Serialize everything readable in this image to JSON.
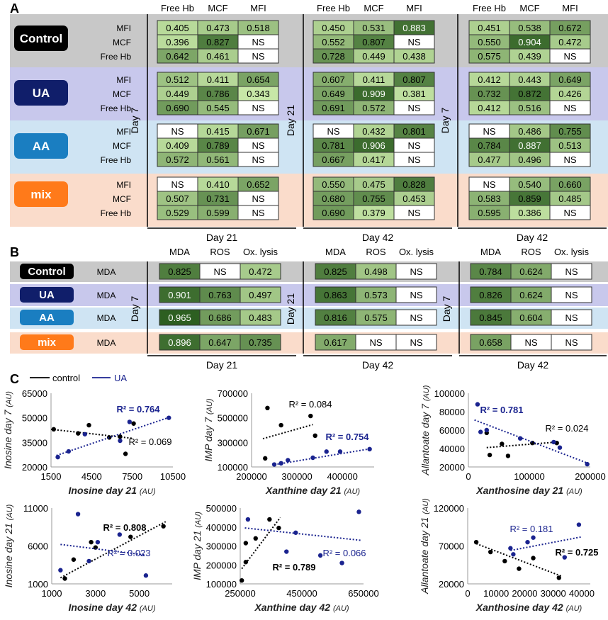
{
  "colors": {
    "control_band": "#c8c8c8",
    "ua_band": "#c8c8ec",
    "aa_band": "#cfe4f3",
    "mix_band": "#fadccb",
    "control_btn": "#000000",
    "ua_btn": "#101e6a",
    "aa_btn": "#1a7ec1",
    "mix_btn": "#ff7a1a",
    "ns_cell": "#ffffff",
    "control_series": "#000000",
    "ua_series": "#1a238f"
  },
  "panel_a": {
    "letter": "A",
    "col_headers": [
      "Free Hb",
      "MCF",
      "MFI"
    ],
    "row_labels": [
      "MFI",
      "MCF",
      "Free Hb"
    ],
    "groups": [
      "Control",
      "UA",
      "AA",
      "mix"
    ],
    "side_labels": [
      "Day 7",
      "Day 21",
      "Day 7"
    ],
    "bottom_labels": [
      "Day 21",
      "Day 42",
      "Day 42"
    ],
    "grids": [
      [
        [
          [
            "0.405",
            "0.473",
            "0.518"
          ],
          [
            "0.396",
            "0.827",
            "NS"
          ],
          [
            "0.642",
            "0.461",
            "NS"
          ]
        ],
        [
          [
            "0.512",
            "0.411",
            "0.654"
          ],
          [
            "0.449",
            "0.786",
            "0.343"
          ],
          [
            "0.690",
            "0.545",
            "NS"
          ]
        ],
        [
          [
            "NS",
            "0.415",
            "0.671"
          ],
          [
            "0.409",
            "0.789",
            "NS"
          ],
          [
            "0.572",
            "0.561",
            "NS"
          ]
        ],
        [
          [
            "NS",
            "0.410",
            "0.652"
          ],
          [
            "0.507",
            "0.731",
            "NS"
          ],
          [
            "0.529",
            "0.599",
            "NS"
          ]
        ]
      ],
      [
        [
          [
            "0.450",
            "0.531",
            "0.883"
          ],
          [
            "0.552",
            "0.807",
            "NS"
          ],
          [
            "0.728",
            "0.449",
            "0.438"
          ]
        ],
        [
          [
            "0.607",
            "0.411",
            "0.807"
          ],
          [
            "0.649",
            "0.909",
            "0.381"
          ],
          [
            "0.691",
            "0.572",
            "NS"
          ]
        ],
        [
          [
            "NS",
            "0.432",
            "0.801"
          ],
          [
            "0.781",
            "0.906",
            "NS"
          ],
          [
            "0.667",
            "0.417",
            "NS"
          ]
        ],
        [
          [
            "0.550",
            "0.475",
            "0.828"
          ],
          [
            "0.680",
            "0.755",
            "0.453"
          ],
          [
            "0.690",
            "0.379",
            "NS"
          ]
        ]
      ],
      [
        [
          [
            "0.451",
            "0.538",
            "0.672"
          ],
          [
            "0.550",
            "0.904",
            "0.472"
          ],
          [
            "0.575",
            "0.439",
            "NS"
          ]
        ],
        [
          [
            "0.412",
            "0.443",
            "0.649"
          ],
          [
            "0.732",
            "0.872",
            "0.426"
          ],
          [
            "0.412",
            "0.516",
            "NS"
          ]
        ],
        [
          [
            "NS",
            "0.486",
            "0.755"
          ],
          [
            "0.784",
            "0.887",
            "0.513"
          ],
          [
            "0.477",
            "0.496",
            "NS"
          ]
        ],
        [
          [
            "NS",
            "0.540",
            "0.660"
          ],
          [
            "0.583",
            "0.859",
            "0.485"
          ],
          [
            "0.595",
            "0.386",
            "NS"
          ]
        ]
      ]
    ]
  },
  "panel_b": {
    "letter": "B",
    "col_headers": [
      "MDA",
      "ROS",
      "Ox. lysis"
    ],
    "row_label": "MDA",
    "groups": [
      "Control",
      "UA",
      "AA",
      "mix"
    ],
    "side_labels": [
      "Day 7",
      "Day 21",
      "Day 7"
    ],
    "bottom_labels": [
      "Day 21",
      "Day 42",
      "Day 42"
    ],
    "grids": [
      [
        [
          "0.825",
          "NS",
          "0.472"
        ],
        [
          "0.901",
          "0.763",
          "0.497"
        ],
        [
          "0.965",
          "0.686",
          "0.483"
        ],
        [
          "0.896",
          "0.647",
          "0.735"
        ]
      ],
      [
        [
          "0.825",
          "0.498",
          "NS"
        ],
        [
          "0.863",
          "0.573",
          "NS"
        ],
        [
          "0.816",
          "0.575",
          "NS"
        ],
        [
          "0.617",
          "NS",
          "NS"
        ]
      ],
      [
        [
          "0.784",
          "0.624",
          "NS"
        ],
        [
          "0.826",
          "0.624",
          "NS"
        ],
        [
          "0.845",
          "0.604",
          "NS"
        ],
        [
          "0.658",
          "NS",
          "NS"
        ]
      ]
    ]
  },
  "panel_c": {
    "letter": "C",
    "legend": [
      "control",
      "UA"
    ]
  },
  "chart_data": [
    {
      "type": "scatter",
      "title": "",
      "xlabel": "Inosine day 21",
      "xunit": "(AU)",
      "ylabel": "Inosine day 7",
      "yunit": "(AU)",
      "xlim": [
        1500,
        10500
      ],
      "ylim": [
        20000,
        65000
      ],
      "xticks": [
        1500,
        4500,
        7500,
        10500
      ],
      "xtick_labels": [
        "1500",
        "4500",
        "7500",
        "10500"
      ],
      "yticks": [
        20000,
        35000,
        50000,
        65000
      ],
      "ytick_labels": [
        "20000",
        "35000",
        "50000",
        "65000"
      ],
      "series": [
        {
          "name": "control",
          "points": [
            [
              1700,
              43000
            ],
            [
              3500,
              40500
            ],
            [
              4300,
              45500
            ],
            [
              5800,
              38000
            ],
            [
              6600,
              38500
            ],
            [
              7000,
              28000
            ],
            [
              7600,
              46500
            ]
          ],
          "trend": [
            [
              1500,
              43000
            ],
            [
              7500,
              37500
            ]
          ],
          "r2": "R² = 0.069"
        },
        {
          "name": "UA",
          "points": [
            [
              2000,
              26000
            ],
            [
              2800,
              29500
            ],
            [
              4000,
              40000
            ],
            [
              6600,
              36000
            ],
            [
              7300,
              47500
            ],
            [
              10200,
              50000
            ]
          ],
          "trend": [
            [
              1900,
              27000
            ],
            [
              10300,
              50500
            ]
          ],
          "r2": "R² = 0.764"
        }
      ]
    },
    {
      "type": "scatter",
      "title": "",
      "xlabel": "Xanthine day 21",
      "xunit": "(AU)",
      "ylabel": "IMP day 7",
      "yunit": "(AU)",
      "xlim": [
        200000,
        470000
      ],
      "ylim": [
        100000,
        700000
      ],
      "xticks": [
        200000,
        300000,
        400000
      ],
      "xtick_labels": [
        "200000",
        "300000",
        "400000"
      ],
      "yticks": [
        100000,
        300000,
        500000,
        700000
      ],
      "ytick_labels": [
        "100000",
        "300000",
        "500000",
        "700000"
      ],
      "series": [
        {
          "name": "control",
          "points": [
            [
              230000,
              170000
            ],
            [
              235000,
              580000
            ],
            [
              265000,
              440000
            ],
            [
              330000,
              515000
            ],
            [
              340000,
              355000
            ]
          ],
          "trend": [
            [
              225000,
              330000
            ],
            [
              335000,
              445000
            ]
          ],
          "r2": "R² = 0.084"
        },
        {
          "name": "UA",
          "points": [
            [
              250000,
              120000
            ],
            [
              265000,
              130000
            ],
            [
              280000,
              155000
            ],
            [
              335000,
              175000
            ],
            [
              365000,
              225000
            ],
            [
              395000,
              225000
            ],
            [
              460000,
              245000
            ]
          ],
          "trend": [
            [
              250000,
              118000
            ],
            [
              465000,
              250000
            ]
          ],
          "r2": "R² = 0.754"
        }
      ]
    },
    {
      "type": "scatter",
      "title": "",
      "xlabel": "Xanthosine day 21",
      "xunit": "(AU)",
      "ylabel": "Allantoate day 7",
      "yunit": "(AU)",
      "xlim": [
        0,
        200000
      ],
      "ylim": [
        20000,
        100000
      ],
      "xticks": [
        0,
        100000,
        200000
      ],
      "xtick_labels": [
        "0",
        "100000",
        "200000"
      ],
      "yticks": [
        20000,
        40000,
        60000,
        80000,
        100000
      ],
      "ytick_labels": [
        "20000",
        "40000",
        "60000",
        "80000",
        "100000"
      ],
      "series": [
        {
          "name": "control",
          "points": [
            [
              30000,
              57000
            ],
            [
              35000,
              33000
            ],
            [
              55000,
              45000
            ],
            [
              65000,
              32000
            ],
            [
              105000,
              46000
            ],
            [
              145000,
              46000
            ]
          ],
          "trend": [
            [
              30000,
              41000
            ],
            [
              145000,
              47000
            ]
          ],
          "r2": "R² = 0.024"
        },
        {
          "name": "UA",
          "points": [
            [
              15000,
              88000
            ],
            [
              20000,
              58000
            ],
            [
              30000,
              60000
            ],
            [
              85000,
              51000
            ],
            [
              140000,
              47000
            ],
            [
              150000,
              41000
            ],
            [
              195000,
              23000
            ]
          ],
          "trend": [
            [
              10000,
              71000
            ],
            [
              200000,
              23000
            ]
          ],
          "r2": "R² = 0.781"
        }
      ]
    },
    {
      "type": "scatter",
      "title": "",
      "xlabel": "Inosine day 42",
      "xunit": "(AU)",
      "ylabel": "Inosine day 21",
      "yunit": "(AU)",
      "xlim": [
        1000,
        6500
      ],
      "ylim": [
        1000,
        11000
      ],
      "xticks": [
        1000,
        3000,
        5000
      ],
      "xtick_labels": [
        "1000",
        "3000",
        "5000"
      ],
      "yticks": [
        1000,
        6000,
        11000
      ],
      "ytick_labels": [
        "1000",
        "6000",
        "11000"
      ],
      "series": [
        {
          "name": "control",
          "points": [
            [
              1600,
              1700
            ],
            [
              2000,
              4200
            ],
            [
              2800,
              6500
            ],
            [
              3000,
              5800
            ],
            [
              4600,
              7200
            ],
            [
              6100,
              8600
            ]
          ],
          "trend": [
            [
              1400,
              1800
            ],
            [
              6200,
              9200
            ]
          ],
          "r2": "R² = 0.808"
        },
        {
          "name": "UA",
          "points": [
            [
              1400,
              2800
            ],
            [
              2200,
              10200
            ],
            [
              2700,
              4000
            ],
            [
              3100,
              6500
            ],
            [
              4100,
              7500
            ],
            [
              5300,
              2100
            ]
          ],
          "trend": [
            [
              1400,
              6200
            ],
            [
              5300,
              4800
            ]
          ],
          "r2": "R² = 0.023"
        }
      ]
    },
    {
      "type": "scatter",
      "title": "",
      "xlabel": "Xanthine day 42",
      "xunit": "(AU)",
      "ylabel": "IMP day 21",
      "yunit": "(AU)",
      "xlim": [
        250000,
        650000
      ],
      "ylim": [
        100000,
        500000
      ],
      "xticks": [
        250000,
        450000,
        650000
      ],
      "xtick_labels": [
        "250000",
        "450000",
        "650000"
      ],
      "yticks": [
        100000,
        200000,
        300000,
        400000,
        500000
      ],
      "ytick_labels": [
        "100000",
        "200000",
        "300000",
        "400000",
        "500000"
      ],
      "series": [
        {
          "name": "control",
          "points": [
            [
              255000,
              118000
            ],
            [
              268000,
              215000
            ],
            [
              268000,
              315000
            ],
            [
              300000,
              340000
            ],
            [
              345000,
              440000
            ],
            [
              375000,
              395000
            ]
          ],
          "trend": [
            [
              255000,
              180000
            ],
            [
              380000,
              450000
            ]
          ],
          "r2": "R² = 0.789"
        },
        {
          "name": "UA",
          "points": [
            [
              275000,
              440000
            ],
            [
              400000,
              270000
            ],
            [
              430000,
              370000
            ],
            [
              510000,
              250000
            ],
            [
              580000,
              210000
            ],
            [
              635000,
              480000
            ]
          ],
          "trend": [
            [
              265000,
              395000
            ],
            [
              640000,
              330000
            ]
          ],
          "r2": "R² = 0.066"
        }
      ]
    },
    {
      "type": "scatter",
      "title": "",
      "xlabel": "Xanthosine day 42",
      "xunit": "(AU)",
      "ylabel": "Allantoate day 21",
      "yunit": "(AU)",
      "xlim": [
        0,
        43000
      ],
      "ylim": [
        20000,
        120000
      ],
      "xticks": [
        0,
        10000,
        20000,
        30000,
        40000
      ],
      "xtick_labels": [
        "0",
        "10000",
        "20000",
        "30000",
        "40000"
      ],
      "yticks": [
        20000,
        70000,
        120000
      ],
      "ytick_labels": [
        "20000",
        "70000",
        "120000"
      ],
      "series": [
        {
          "name": "control",
          "points": [
            [
              3000,
              75000
            ],
            [
              8000,
              62000
            ],
            [
              13000,
              50000
            ],
            [
              18000,
              40000
            ],
            [
              23000,
              54000
            ],
            [
              32000,
              28000
            ]
          ],
          "trend": [
            [
              3000,
              73000
            ],
            [
              33000,
              30000
            ]
          ],
          "r2": "R² = 0.725"
        },
        {
          "name": "UA",
          "points": [
            [
              15000,
              67000
            ],
            [
              16000,
              59000
            ],
            [
              21000,
              75000
            ],
            [
              23000,
              81000
            ],
            [
              34000,
              55000
            ],
            [
              39000,
              98000
            ]
          ],
          "trend": [
            [
              15000,
              64000
            ],
            [
              40000,
              82000
            ]
          ],
          "r2": "R² = 0.181"
        }
      ]
    }
  ]
}
